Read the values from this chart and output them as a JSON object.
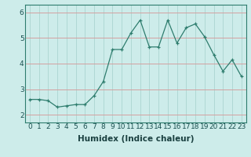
{
  "title": "",
  "xlabel": "Humidex (Indice chaleur)",
  "ylabel": "",
  "x": [
    0,
    1,
    2,
    3,
    4,
    5,
    6,
    7,
    8,
    9,
    10,
    11,
    12,
    13,
    14,
    15,
    16,
    17,
    18,
    19,
    20,
    21,
    22,
    23
  ],
  "y": [
    2.6,
    2.6,
    2.55,
    2.3,
    2.35,
    2.4,
    2.4,
    2.75,
    3.3,
    4.55,
    4.55,
    5.2,
    5.7,
    4.65,
    4.65,
    5.7,
    4.8,
    5.4,
    5.55,
    5.05,
    4.35,
    3.7,
    4.15,
    3.5
  ],
  "line_color": "#2e7d6e",
  "marker": "+",
  "bg_color": "#cdecea",
  "vgrid_color": "#b0d8d4",
  "hgrid_color": "#d4a0a0",
  "ylim": [
    1.7,
    6.3
  ],
  "xlim": [
    -0.5,
    23.5
  ],
  "yticks": [
    2,
    3,
    4,
    5,
    6
  ],
  "xticks": [
    0,
    1,
    2,
    3,
    4,
    5,
    6,
    7,
    8,
    9,
    10,
    11,
    12,
    13,
    14,
    15,
    16,
    17,
    18,
    19,
    20,
    21,
    22,
    23
  ],
  "xlabel_fontsize": 7.5,
  "tick_fontsize": 6.5
}
